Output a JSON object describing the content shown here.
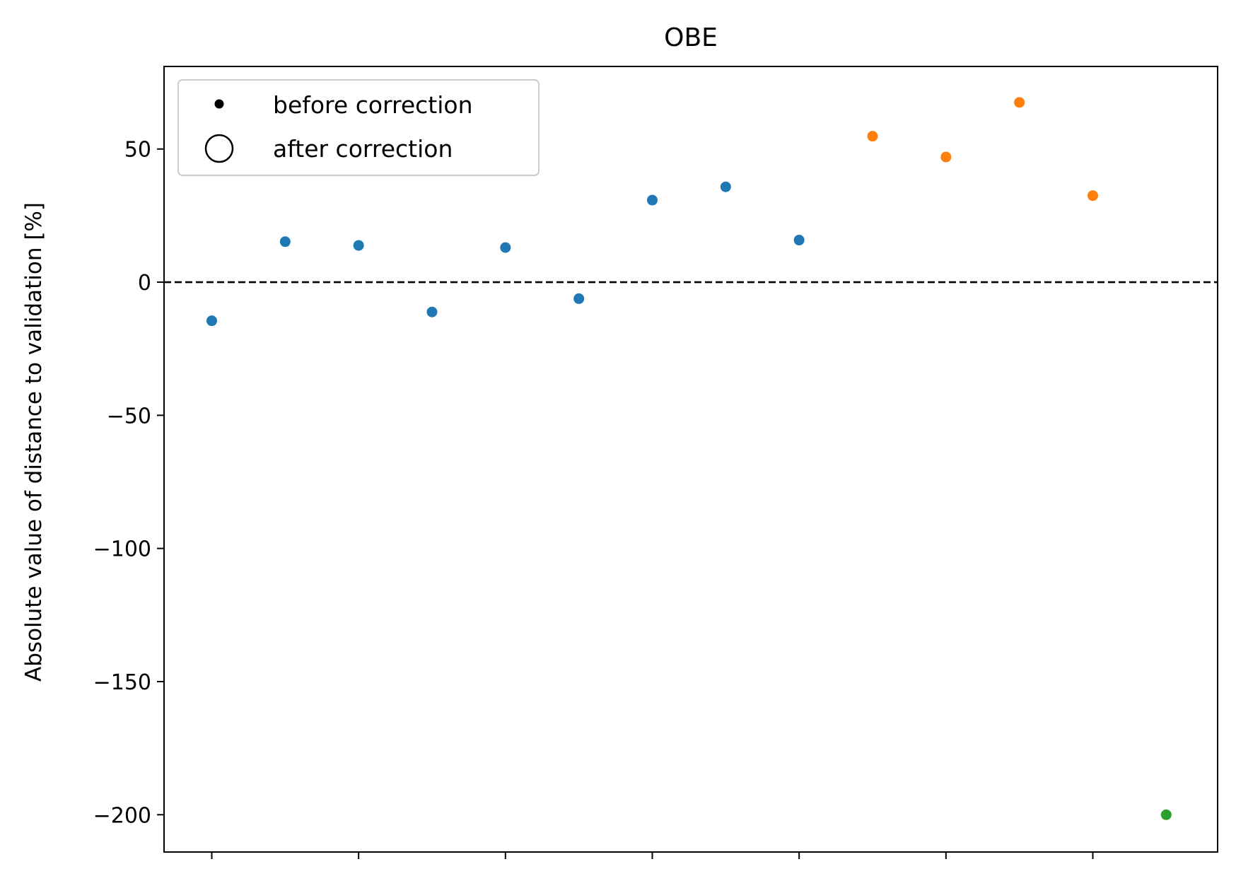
{
  "chart_data": {
    "type": "scatter",
    "title": "OBE",
    "xlabel": "",
    "ylabel": "Absolute value of distance to validation [%]",
    "ylim": [
      -214,
      81
    ],
    "xlim": [
      -0.65,
      13.7
    ],
    "yticks": [
      50,
      0,
      -50,
      -100,
      -150,
      -200
    ],
    "ytick_labels": [
      "50",
      "0",
      "−50",
      "−100",
      "−150",
      "−200"
    ],
    "xticks": [
      0,
      2,
      4,
      6,
      8,
      10,
      12
    ],
    "xtick_labels": [
      "",
      "",
      "",
      "",
      "",
      "",
      ""
    ],
    "reference_line": {
      "y": 0,
      "style": "dashed",
      "color": "#000000"
    },
    "grid": false,
    "legend_position": "upper-left",
    "legend": [
      {
        "label": "before correction",
        "marker": "filled-dot"
      },
      {
        "label": "after correction",
        "marker": "open-circle"
      }
    ],
    "series": [
      {
        "color": "#1f77b4",
        "x": [
          0,
          1,
          2,
          3,
          4,
          5,
          6,
          7,
          8
        ],
        "y": [
          -14.5,
          15.2,
          13.8,
          -11.2,
          13.0,
          -6.2,
          30.8,
          35.8,
          15.8
        ]
      },
      {
        "color": "#ff7f0e",
        "x": [
          9,
          10,
          11,
          12
        ],
        "y": [
          54.8,
          47.0,
          67.5,
          32.5
        ]
      },
      {
        "color": "#2ca02c",
        "x": [
          13
        ],
        "y": [
          -200
        ]
      }
    ]
  }
}
